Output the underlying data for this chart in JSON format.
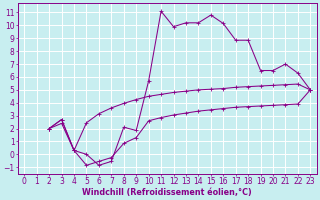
{
  "bg_color": "#c8eef0",
  "grid_color": "#ffffff",
  "line_color": "#880088",
  "xlabel": "Windchill (Refroidissement éolien,°C)",
  "xlabel_fontsize": 5.8,
  "tick_fontsize": 5.5,
  "xlim": [
    -0.5,
    23.5
  ],
  "ylim": [
    -1.5,
    11.7
  ],
  "xticks": [
    0,
    1,
    2,
    3,
    4,
    5,
    6,
    7,
    8,
    9,
    10,
    11,
    12,
    13,
    14,
    15,
    16,
    17,
    18,
    19,
    20,
    21,
    22,
    23
  ],
  "yticks": [
    -1,
    0,
    1,
    2,
    3,
    4,
    5,
    6,
    7,
    8,
    9,
    10,
    11
  ],
  "main_x": [
    2,
    3,
    4,
    5,
    6,
    7,
    8,
    9,
    10,
    11,
    12,
    13,
    14,
    15,
    16,
    17,
    18,
    19,
    20,
    21,
    22,
    23
  ],
  "main_y": [
    2,
    2.7,
    0.3,
    0.0,
    -0.85,
    -0.55,
    2.1,
    1.85,
    5.7,
    11.1,
    9.9,
    10.2,
    10.2,
    10.8,
    10.15,
    8.85,
    8.85,
    6.5,
    6.5,
    7.0,
    6.3,
    5.0
  ],
  "upper_x": [
    2,
    3,
    4,
    5,
    6,
    7,
    8,
    9,
    10,
    11,
    12,
    13,
    14,
    15,
    16,
    17,
    18,
    19,
    20,
    21,
    22,
    23
  ],
  "upper_y": [
    2,
    2.7,
    0.3,
    2.45,
    3.15,
    3.6,
    3.95,
    4.25,
    4.5,
    4.65,
    4.8,
    4.9,
    5.0,
    5.05,
    5.1,
    5.2,
    5.25,
    5.3,
    5.35,
    5.4,
    5.45,
    5.0
  ],
  "lower_x": [
    2,
    3,
    4,
    5,
    6,
    7,
    8,
    9,
    10,
    11,
    12,
    13,
    14,
    15,
    16,
    17,
    18,
    19,
    20,
    21,
    22,
    23
  ],
  "lower_y": [
    2,
    2.4,
    0.3,
    -0.85,
    -0.55,
    -0.25,
    0.85,
    1.3,
    2.6,
    2.85,
    3.05,
    3.2,
    3.35,
    3.45,
    3.55,
    3.65,
    3.7,
    3.75,
    3.8,
    3.85,
    3.9,
    5.0
  ]
}
